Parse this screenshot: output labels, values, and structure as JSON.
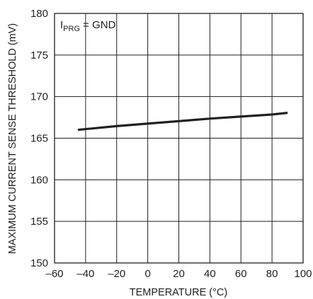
{
  "chart_data": {
    "type": "line",
    "title": "",
    "xlabel": "TEMPERATURE (°C)",
    "ylabel": "MAXIMUM CURRENT SENSE THRESHOLD (mV)",
    "xlim": [
      -60,
      100
    ],
    "ylim": [
      150,
      180
    ],
    "x_ticks": [
      -60,
      -40,
      -20,
      0,
      20,
      40,
      60,
      80,
      100
    ],
    "x_tick_labels": [
      "–60",
      "–40",
      "–20",
      "0",
      "20",
      "40",
      "60",
      "80",
      "100"
    ],
    "y_ticks": [
      150,
      155,
      160,
      165,
      170,
      175,
      180
    ],
    "y_tick_labels": [
      "150",
      "155",
      "160",
      "165",
      "170",
      "175",
      "180"
    ],
    "grid": true,
    "annotation": {
      "main": "I",
      "subscript": "PRG",
      "rest": " = GND"
    },
    "series": [
      {
        "x": [
          -45,
          -20,
          0,
          20,
          40,
          60,
          80,
          90
        ],
        "y": [
          166.0,
          166.45,
          166.75,
          167.05,
          167.35,
          167.6,
          167.85,
          168.05
        ]
      }
    ]
  }
}
